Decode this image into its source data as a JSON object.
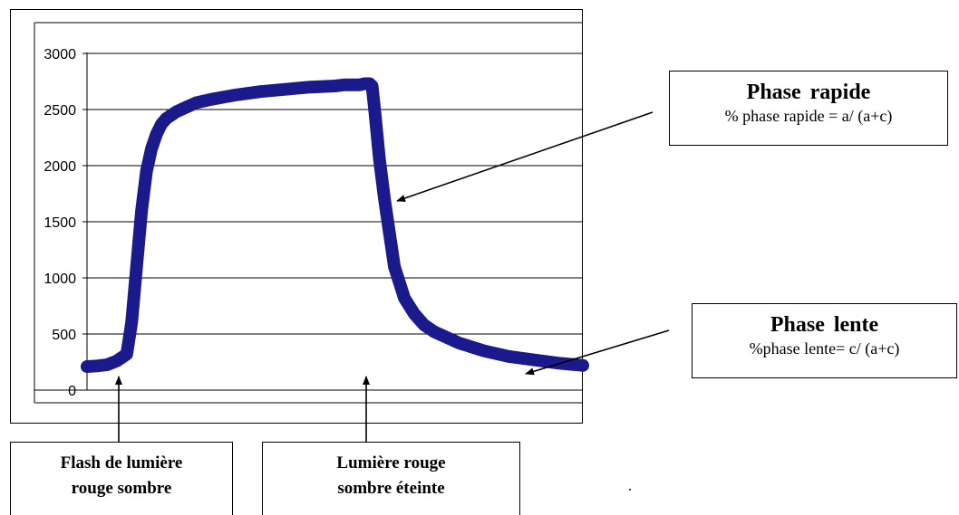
{
  "chart_data": {
    "type": "line",
    "title": "",
    "xlabel": "",
    "ylabel": "",
    "ylim": [
      0,
      3000
    ],
    "yticks": [
      0,
      500,
      1000,
      1500,
      2000,
      2500,
      3000
    ],
    "grid": "horizontal",
    "legend": "none",
    "series_color": "#1a1a8c",
    "x": [
      0,
      2,
      4,
      6,
      8,
      9,
      10,
      11,
      12,
      13,
      14,
      15,
      16,
      18,
      20,
      22,
      25,
      30,
      35,
      40,
      45,
      50,
      52,
      55,
      56,
      57,
      57.5,
      58,
      59,
      60,
      62,
      64,
      66,
      68,
      70,
      75,
      80,
      85,
      90,
      95,
      100
    ],
    "y": [
      210,
      215,
      225,
      260,
      320,
      600,
      1100,
      1600,
      1950,
      2150,
      2280,
      2370,
      2420,
      2480,
      2520,
      2560,
      2590,
      2630,
      2660,
      2680,
      2700,
      2710,
      2720,
      2720,
      2730,
      2730,
      2710,
      2500,
      2050,
      1700,
      1100,
      820,
      680,
      580,
      520,
      420,
      350,
      300,
      270,
      240,
      220
    ]
  },
  "callouts": {
    "fast": {
      "title": "Phase  rapide",
      "formula": "% phase rapide = a/ (a+c)"
    },
    "slow": {
      "title": "Phase  lente",
      "formula": "%phase lente= c/ (a+c)"
    }
  },
  "bottom_labels": {
    "flash": {
      "line1": "Flash de lumière",
      "line2": "rouge sombre"
    },
    "off": {
      "line1": "Lumière rouge",
      "line2": "sombre éteinte"
    }
  }
}
